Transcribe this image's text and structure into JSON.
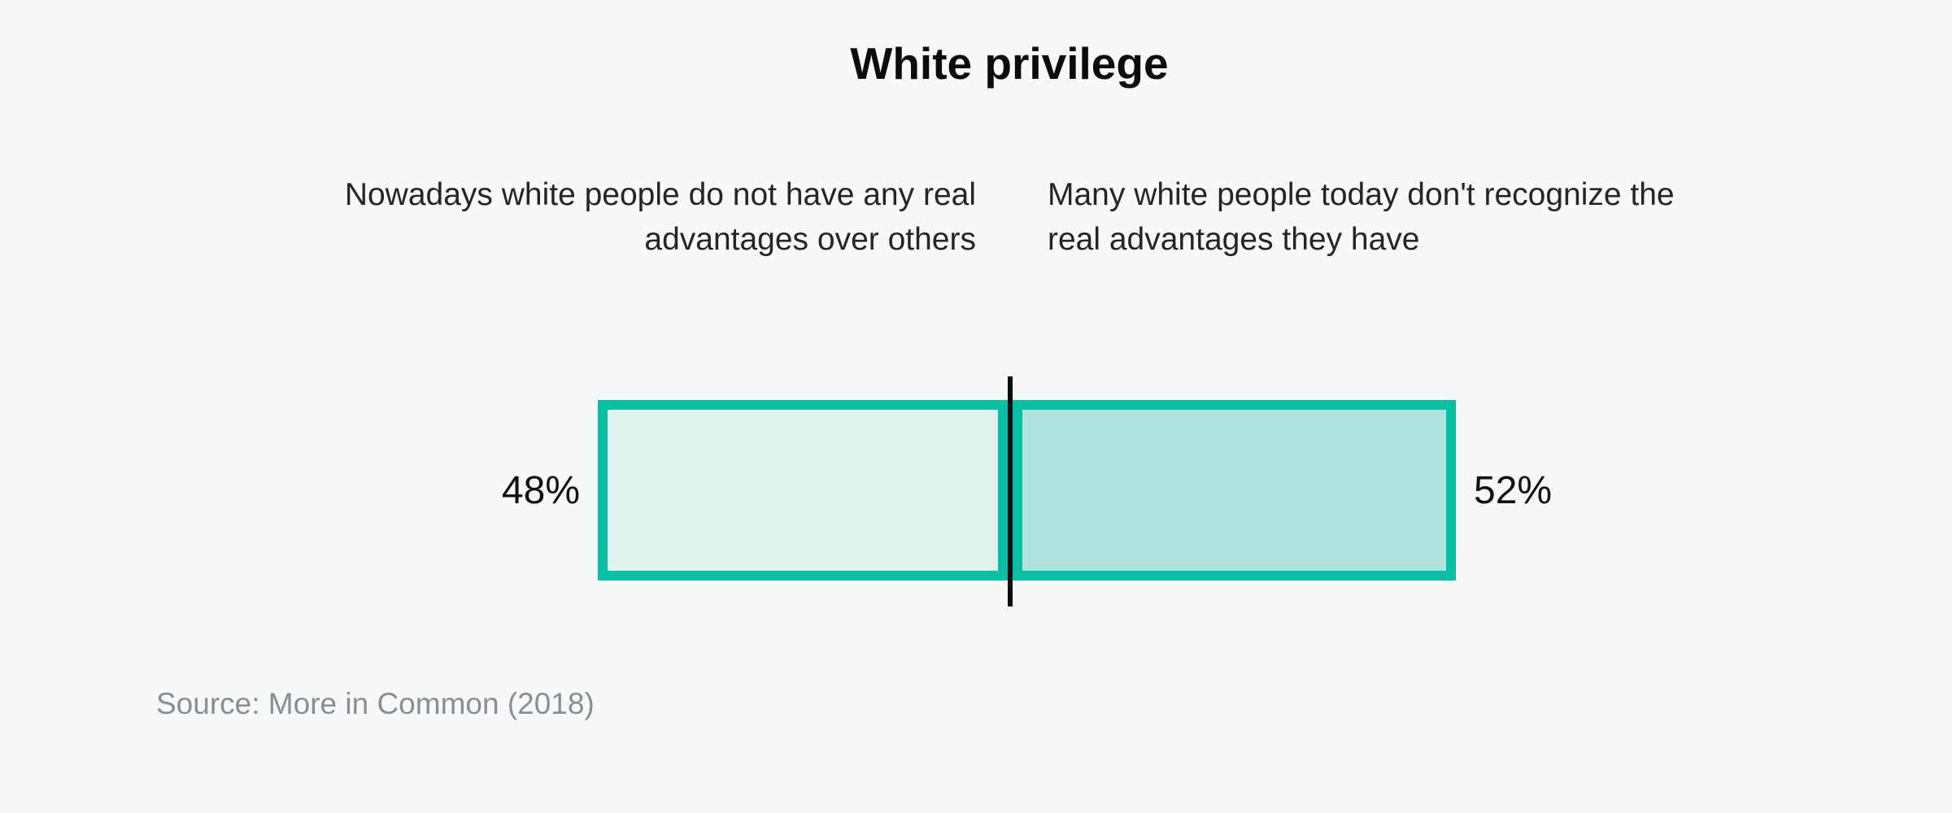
{
  "title": "White privilege",
  "statements": {
    "left": {
      "lines": [
        "Nowadays white people do not have any real",
        "advantages over others"
      ]
    },
    "right": {
      "lines": [
        "Many white people today don't recognize the",
        "real advantages they have"
      ]
    }
  },
  "source": "Source: More in Common (2018)",
  "chart_data": {
    "type": "bar",
    "subtype": "opposing-horizontal-split-bar",
    "title": "White privilege",
    "categories": [
      "Nowadays white people do not have any real advantages over others",
      "Many white people today don't recognize the real advantages they have"
    ],
    "values": [
      48,
      52
    ],
    "value_labels": [
      "48%",
      "52%"
    ],
    "unit": "%",
    "axis_range": [
      0,
      100
    ],
    "legend": "none",
    "grid": false,
    "source": "More in Common (2018)",
    "colors": {
      "bar_border": "#07bfa5",
      "left_segment_fill": "#e0f2ee",
      "right_segment_fill": "#b0e3dd",
      "center_divider": "#0d0d0d",
      "background": "#f6f8f9",
      "statement_text": "#232527",
      "value_text": "#101113",
      "source_text": "#8b8e90"
    }
  }
}
